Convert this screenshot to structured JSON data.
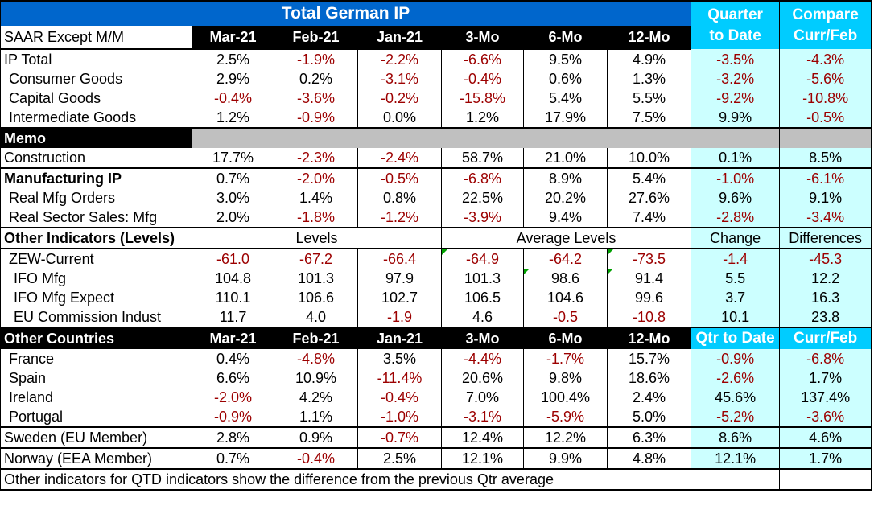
{
  "title": "Total German IP",
  "qtd_header": [
    "Quarter",
    "to Date"
  ],
  "compare_header": [
    "Compare",
    "Curr/Feb"
  ],
  "col_headers": {
    "label": "SAAR Except M/M",
    "cols": [
      "Mar-21",
      "Feb-21",
      "Jan-21",
      "3-Mo",
      "6-Mo",
      "12-Mo"
    ]
  },
  "ip_rows": [
    {
      "label": "IP Total",
      "values": [
        "2.5%",
        "-1.9%",
        "-2.2%",
        "-6.6%",
        "9.5%",
        "4.9%"
      ],
      "qtd": "-3.5%",
      "cmp": "-4.3%"
    },
    {
      "label": "Consumer Goods",
      "values": [
        "2.9%",
        "0.2%",
        "-3.1%",
        "-0.4%",
        "0.6%",
        "1.3%"
      ],
      "qtd": "-3.2%",
      "cmp": "-5.6%"
    },
    {
      "label": "Capital Goods",
      "values": [
        "-0.4%",
        "-3.6%",
        "-0.2%",
        "-15.8%",
        "5.4%",
        "5.5%"
      ],
      "qtd": "-9.2%",
      "cmp": "-10.8%"
    },
    {
      "label": "Intermediate Goods",
      "values": [
        "1.2%",
        "-0.9%",
        "0.0%",
        "1.2%",
        "17.9%",
        "7.5%"
      ],
      "qtd": "9.9%",
      "cmp": "-0.5%"
    }
  ],
  "memo_label": "Memo",
  "construction": {
    "label": "Construction",
    "values": [
      "17.7%",
      "-2.3%",
      "-2.4%",
      "58.7%",
      "21.0%",
      "10.0%"
    ],
    "qtd": "0.1%",
    "cmp": "8.5%"
  },
  "mfg_rows": [
    {
      "label": "Manufacturing IP",
      "values": [
        "0.7%",
        "-2.0%",
        "-0.5%",
        "-6.8%",
        "8.9%",
        "5.4%"
      ],
      "qtd": "-1.0%",
      "cmp": "-6.1%"
    },
    {
      "label": "Real Mfg Orders",
      "values": [
        "3.0%",
        "1.4%",
        "0.8%",
        "22.5%",
        "20.2%",
        "27.6%"
      ],
      "qtd": "9.6%",
      "cmp": "9.1%"
    },
    {
      "label": "Real Sector Sales: Mfg",
      "values": [
        "2.0%",
        "-1.8%",
        "-1.2%",
        "-3.9%",
        "9.4%",
        "7.4%"
      ],
      "qtd": "-2.8%",
      "cmp": "-3.4%"
    }
  ],
  "other_ind_header": {
    "label": "Other Indicators (Levels)",
    "levels": "Levels",
    "avg_levels": "Average Levels",
    "change": "Change",
    "differences": "Differences"
  },
  "other_ind_rows": [
    {
      "label": "ZEW-Current",
      "values": [
        "-61.0",
        "-67.2",
        "-66.4",
        "-64.9",
        "-64.2",
        "-73.5"
      ],
      "qtd": "-1.4",
      "cmp": "-45.3"
    },
    {
      "label": "IFO Mfg",
      "values": [
        "104.8",
        "101.3",
        "97.9",
        "101.3",
        "98.6",
        "91.4"
      ],
      "qtd": "5.5",
      "cmp": "12.2"
    },
    {
      "label": "IFO Mfg Expect",
      "values": [
        "110.1",
        "106.6",
        "102.7",
        "106.5",
        "104.6",
        "99.6"
      ],
      "qtd": "3.7",
      "cmp": "16.3"
    },
    {
      "label": "EU Commission Indust",
      "values": [
        "11.7",
        "4.0",
        "-1.9",
        "4.6",
        "-0.5",
        "-10.8"
      ],
      "qtd": "10.1",
      "cmp": "23.8"
    }
  ],
  "countries_header": {
    "label": "Other Countries",
    "cols": [
      "Mar-21",
      "Feb-21",
      "Jan-21",
      "3-Mo",
      "6-Mo",
      "12-Mo"
    ],
    "qtd": "Qtr to Date",
    "cmp": "Curr/Feb"
  },
  "country_rows": [
    {
      "label": "France",
      "values": [
        "0.4%",
        "-4.8%",
        "3.5%",
        "-4.4%",
        "-1.7%",
        "15.7%"
      ],
      "qtd": "-0.9%",
      "cmp": "-6.8%"
    },
    {
      "label": "Spain",
      "values": [
        "6.6%",
        "10.9%",
        "-11.4%",
        "20.6%",
        "9.8%",
        "18.6%"
      ],
      "qtd": "-2.6%",
      "cmp": "1.7%"
    },
    {
      "label": "Ireland",
      "values": [
        "-2.0%",
        "4.2%",
        "-0.4%",
        "7.0%",
        "100.4%",
        "2.4%"
      ],
      "qtd": "45.6%",
      "cmp": "137.4%"
    },
    {
      "label": "Portugal",
      "values": [
        "-0.9%",
        "1.1%",
        "-1.0%",
        "-3.1%",
        "-5.9%",
        "5.0%"
      ],
      "qtd": "-5.2%",
      "cmp": "-3.6%"
    }
  ],
  "sweden": {
    "label": "Sweden (EU Member)",
    "values": [
      "2.8%",
      "0.9%",
      "-0.7%",
      "12.4%",
      "12.2%",
      "6.3%"
    ],
    "qtd": "8.6%",
    "cmp": "4.6%"
  },
  "norway": {
    "label": "Norway (EEA Member)",
    "values": [
      "0.7%",
      "-0.4%",
      "2.5%",
      "12.1%",
      "9.9%",
      "4.8%"
    ],
    "qtd": "12.1%",
    "cmp": "1.7%"
  },
  "footnote": "Other indicators for QTD indicators show the difference from the previous Qtr average",
  "colors": {
    "title_bg": "#0066cc",
    "header_bg": "#000000",
    "cyan_header": "#00ccff",
    "cyan_cell": "#ccffff",
    "negative": "#9c0000",
    "memo_gray": "#c0c0c0"
  }
}
